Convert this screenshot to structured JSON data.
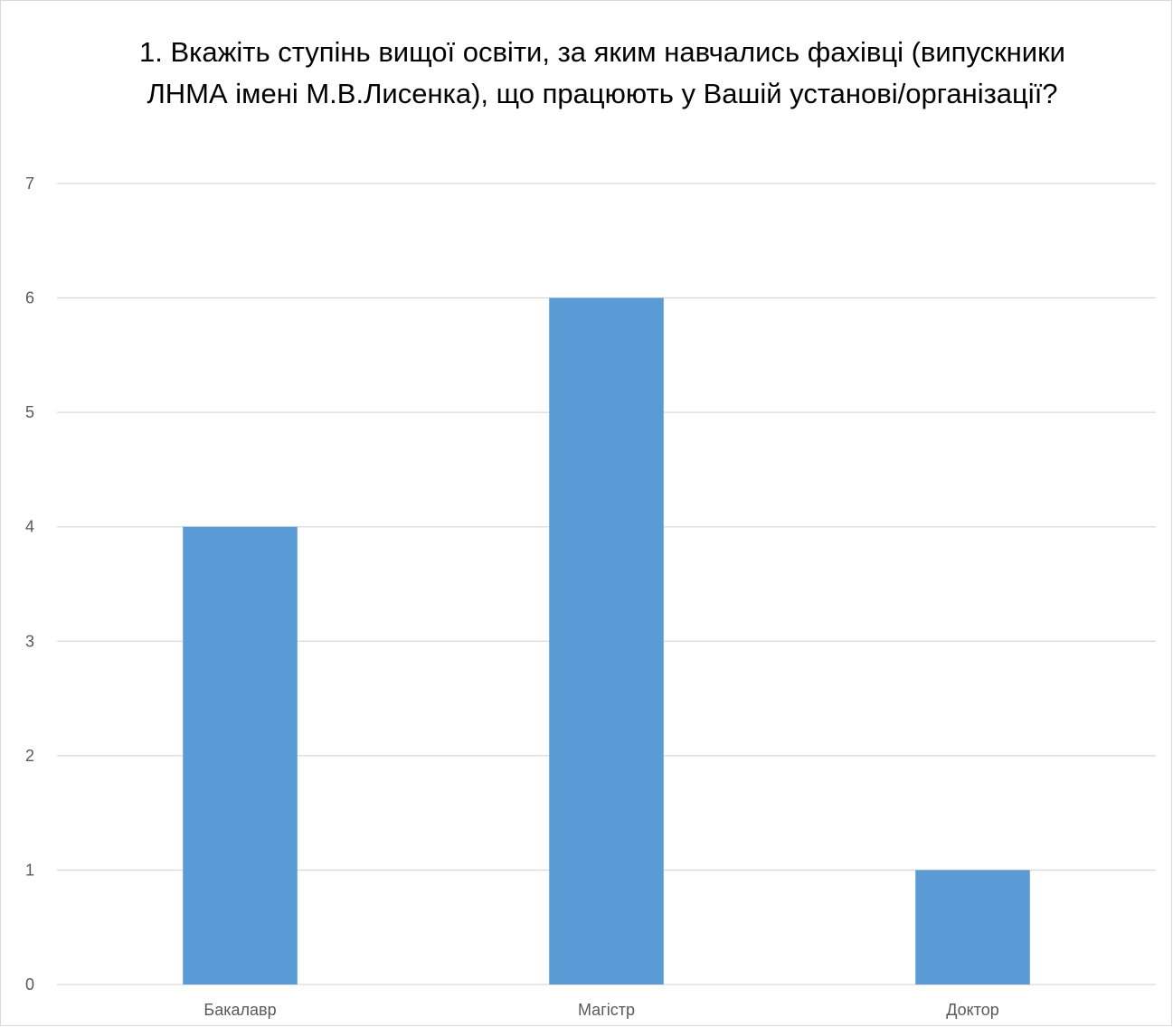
{
  "chart_data": {
    "type": "bar",
    "title": "1. Вкажіть ступінь вищої освіти, за яким навчались фахівці (випускники ЛНМА імені М.В.Лисенка), що працюють у Вашій установі/організації?",
    "categories": [
      "Бакалавр",
      "Магістр",
      "Доктор"
    ],
    "values": [
      4,
      6,
      1
    ],
    "xlabel": "",
    "ylabel": "",
    "ylim": [
      0,
      7
    ],
    "yticks": [
      "0",
      "1",
      "2",
      "3",
      "4",
      "5",
      "6",
      "7"
    ],
    "grid": true,
    "legend": "none",
    "bar_color": "#5b9bd5",
    "grid_color": "#d9d9d9"
  }
}
